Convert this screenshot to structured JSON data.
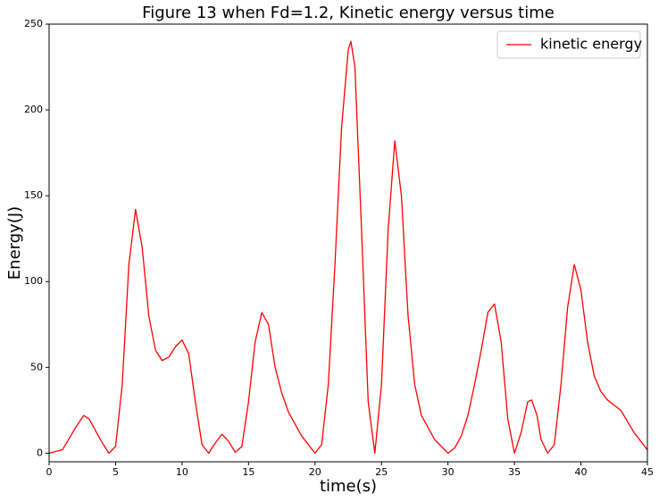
{
  "chart_data": {
    "type": "line",
    "title": "Figure 13 when Fd=1.2, Kinetic energy versus time",
    "xlabel": "time(s)",
    "ylabel": "Energy(J)",
    "x": [
      0,
      1,
      2,
      2.6,
      3,
      4,
      4.5,
      5,
      5.5,
      6,
      6.5,
      7,
      7.5,
      8,
      8.5,
      9,
      9.5,
      10,
      10.5,
      11,
      11.5,
      12,
      12.5,
      13,
      13.5,
      14,
      14.5,
      15,
      15.5,
      16,
      16.5,
      17,
      17.5,
      18,
      19,
      20,
      20.5,
      21,
      21.5,
      22,
      22.5,
      22.7,
      23,
      23.5,
      24,
      24.5,
      25,
      25.5,
      26,
      26.5,
      27,
      27.5,
      28,
      29,
      30,
      30.5,
      31,
      31.5,
      32,
      32.5,
      33,
      33.5,
      34,
      34.5,
      35,
      35.5,
      36,
      36.3,
      36.7,
      37,
      37.5,
      38,
      38.5,
      39,
      39.5,
      40,
      40.5,
      41,
      41.5,
      42,
      43,
      44,
      45
    ],
    "series": [
      {
        "name": "kinetic energy",
        "color": "#ff0000",
        "values": [
          0,
          2,
          15,
          22,
          20,
          6,
          0,
          4,
          40,
          110,
          142,
          120,
          80,
          60,
          54,
          56,
          62,
          66,
          58,
          30,
          5,
          0,
          6,
          11,
          7,
          0.5,
          4,
          30,
          65,
          82,
          75,
          50,
          35,
          24,
          10,
          0,
          5,
          40,
          110,
          190,
          235,
          240,
          225,
          130,
          30,
          0,
          40,
          130,
          182,
          150,
          80,
          40,
          22,
          8,
          0,
          3,
          10,
          22,
          40,
          60,
          82,
          87,
          65,
          20,
          0,
          12,
          30,
          31,
          22,
          8,
          0,
          5,
          40,
          85,
          110,
          95,
          65,
          45,
          36,
          31,
          25,
          12,
          2
        ]
      }
    ],
    "xlim": [
      0,
      45
    ],
    "xticks": [
      0,
      5,
      10,
      15,
      20,
      25,
      30,
      35,
      40,
      45
    ],
    "ylim": [
      -5,
      250
    ],
    "yticks": [
      0,
      50,
      100,
      150,
      200,
      250
    ],
    "grid": false,
    "legend": "upper right"
  }
}
